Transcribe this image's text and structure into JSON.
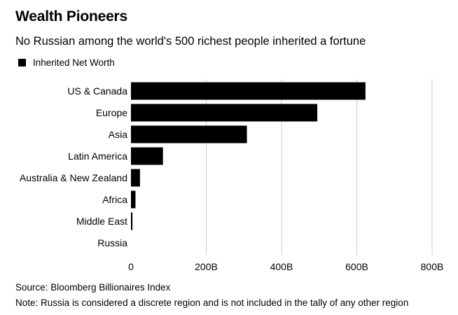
{
  "title": "Wealth Pioneers",
  "subtitle": "No Russian among the world's 500 richest people inherited a fortune",
  "legend_label": "Inherited Net Worth",
  "source": "Source: Bloomberg Billionaires Index",
  "note": "Note: Russia is considered a discrete region and is not included in the tally of any other region",
  "colors": {
    "bar": "#000000",
    "grid": "#cfcfcf",
    "background": "#ffffff"
  },
  "chart_data": {
    "type": "bar",
    "orientation": "horizontal",
    "categories": [
      "US & Canada",
      "Europe",
      "Asia",
      "Latin America",
      "Australia & New Zealand",
      "Africa",
      "Middle East",
      "Russia"
    ],
    "series": [
      {
        "name": "Inherited Net Worth",
        "values": [
          623,
          495,
          308,
          85,
          24,
          12,
          4,
          0
        ]
      }
    ],
    "xlim": [
      0,
      800
    ],
    "xticks": [
      0,
      200,
      400,
      600,
      800
    ],
    "xtick_labels": [
      "0",
      "200B",
      "400B",
      "600B",
      "800B"
    ],
    "grid": true,
    "legend": "top-left"
  }
}
